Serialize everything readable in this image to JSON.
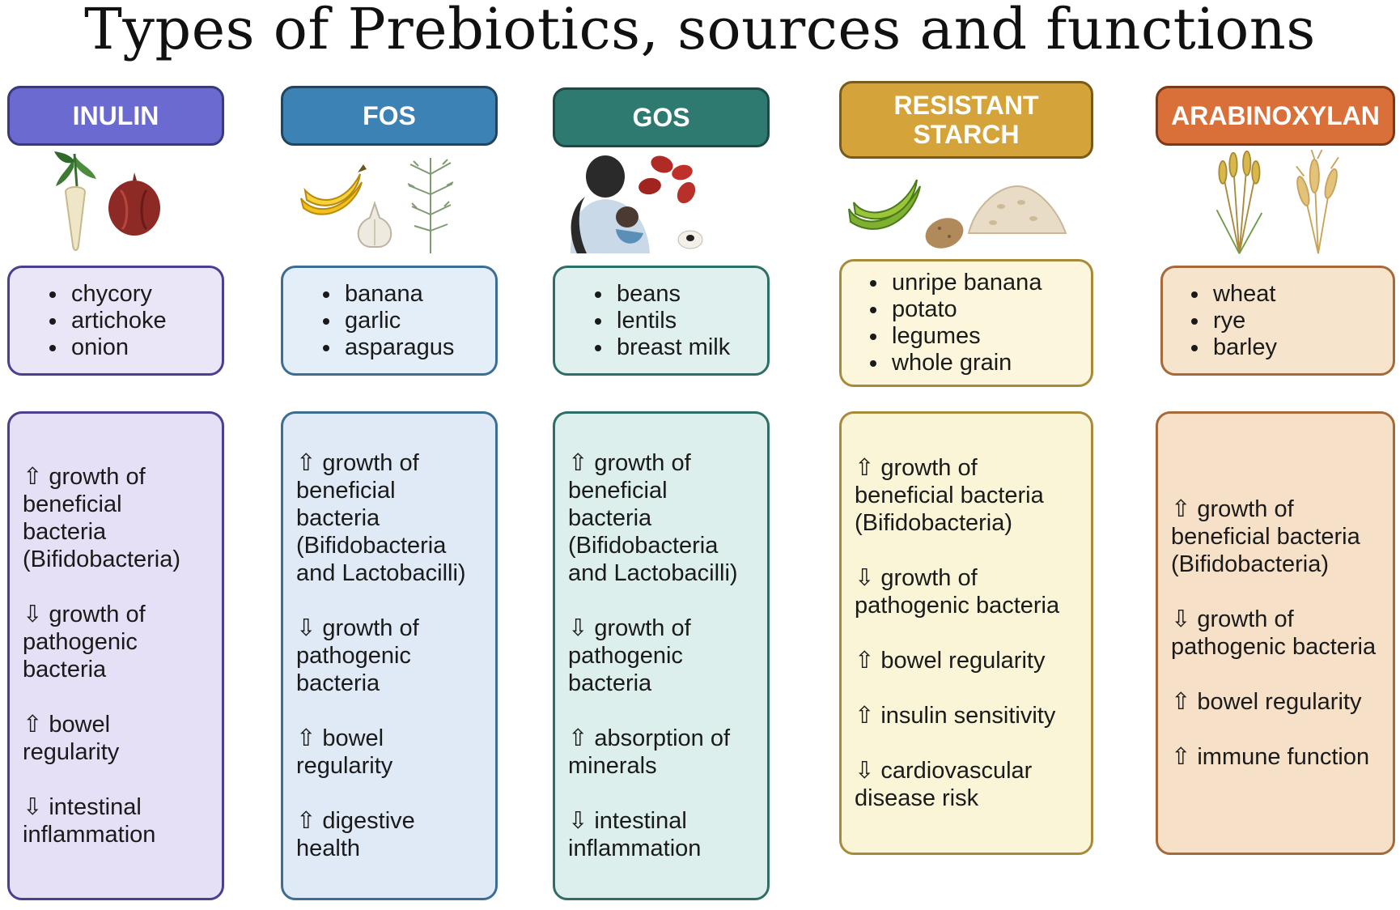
{
  "title": "Types of Prebiotics, sources and functions",
  "columns": [
    {
      "name": "INULIN",
      "colors": {
        "header": "#6a6ad0",
        "header_border": "#3a3a7a",
        "src_bg": "#ebe6f7",
        "src_border": "#4b3f8f",
        "fn_bg": "#e6e0f6",
        "fn_border": "#4b3f8f"
      },
      "illustrations": [
        "chicory-root-icon",
        "onion-icon"
      ],
      "sources": [
        "chycory",
        "artichoke",
        "onion"
      ],
      "functions": [
        "⇧ growth of beneficial bacteria (Bifidobacteria)",
        "⇩ growth of pathogenic bacteria",
        "⇧ bowel regularity",
        "⇩ intestinal inflammation"
      ]
    },
    {
      "name": "FOS",
      "colors": {
        "header": "#3c82b4",
        "header_border": "#22445e",
        "src_bg": "#e4eef8",
        "src_border": "#3b6e92",
        "fn_bg": "#dfeaf6",
        "fn_border": "#3b6e92"
      },
      "illustrations": [
        "banana-icon",
        "garlic-icon",
        "asparagus-icon"
      ],
      "sources": [
        "banana",
        "garlic",
        "asparagus"
      ],
      "functions": [
        "⇧ growth of beneficial bacteria (Bifidobacteria and Lactobacilli)",
        "⇩ growth of pathogenic bacteria",
        "⇧ bowel regularity",
        "⇧ digestive health"
      ]
    },
    {
      "name": "GOS",
      "colors": {
        "header": "#2f7a70",
        "header_border": "#1f4a44",
        "src_bg": "#e0f0ee",
        "src_border": "#2f6e66",
        "fn_bg": "#dcefec",
        "fn_border": "#2f6e66"
      },
      "illustrations": [
        "breastfeeding-mother-icon",
        "beans-icon"
      ],
      "sources": [
        "beans",
        "lentils",
        "breast milk"
      ],
      "functions": [
        "⇧ growth of beneficial bacteria (Bifidobacteria and Lactobacilli)",
        "⇩ growth of pathogenic bacteria",
        "⇧ absorption of minerals",
        "⇩ intestinal inflammation"
      ]
    },
    {
      "name": "RESISTANT STARCH",
      "colors": {
        "header": "#d4a33a",
        "header_border": "#7a5a1a",
        "src_bg": "#fbf6dc",
        "src_border": "#a88b3a",
        "fn_bg": "#fbf5d8",
        "fn_border": "#a88b3a"
      },
      "illustrations": [
        "green-banana-icon",
        "potato-icon",
        "grain-pile-icon"
      ],
      "sources": [
        "unripe banana",
        "potato",
        "legumes",
        "whole grain"
      ],
      "functions": [
        "⇧ growth of beneficial bacteria (Bifidobacteria)",
        "⇩ growth of pathogenic bacteria",
        "⇧ bowel regularity",
        "⇧ insulin sensitivity",
        "⇩ cardiovascular disease risk"
      ]
    },
    {
      "name": "ARABINOXYLAN",
      "colors": {
        "header": "#d9703a",
        "header_border": "#7a3a1a",
        "src_bg": "#f7e4cc",
        "src_border": "#a5693a",
        "fn_bg": "#f6e1c8",
        "fn_border": "#a5693a"
      },
      "illustrations": [
        "wheat-icon",
        "barley-icon"
      ],
      "sources": [
        "wheat",
        "rye",
        "barley"
      ],
      "functions": [
        "⇧ growth of beneficial bacteria (Bifidobacteria)",
        "⇩ growth of pathogenic bacteria",
        "⇧ bowel regularity",
        "⇧ immune function"
      ]
    }
  ]
}
